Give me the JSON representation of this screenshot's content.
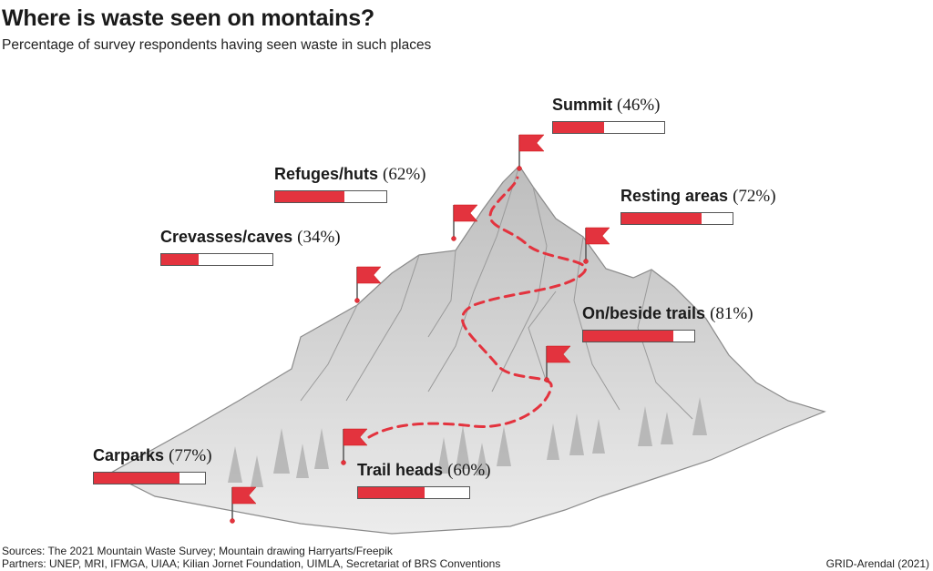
{
  "title": "Where is waste seen on montains?",
  "subtitle": "Percentage of survey respondents having seen waste in such places",
  "chart_data": {
    "type": "bar",
    "unit": "%",
    "max": 100,
    "categories": [
      "Summit",
      "Refuges/huts",
      "Resting areas",
      "Crevasses/caves",
      "On/beside trails",
      "Carparks",
      "Trail heads"
    ],
    "values": [
      46,
      62,
      72,
      34,
      81,
      77,
      60
    ],
    "value_labels": [
      "(46%)",
      "(62%)",
      "(72%)",
      "(34%)",
      "(81%)",
      "(77%)",
      "(60%)"
    ],
    "bar_color": "#e3333e",
    "grid": false,
    "legend": "none"
  },
  "footer": {
    "sources": "Sources: The 2021 Mountain Waste Survey; Mountain drawing Harryarts/Freepik",
    "partners": "Partners: UNEP, MRI, IFMGA, UIAA; Kilian Jornet Foundation, UIMLA, Secretariat of BRS Conventions",
    "credit": "GRID-Arendal (2021)"
  },
  "colors": {
    "accent": "#e3333e",
    "mountain_stroke": "#8a8a8a",
    "mountain_fill": "#e6e6e6"
  }
}
